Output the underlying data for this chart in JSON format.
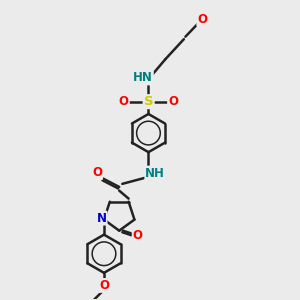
{
  "bg_color": "#ebebeb",
  "bond_color": "#222222",
  "bond_width": 1.8,
  "atom_colors": {
    "O": "#ff0000",
    "N": "#0000cc",
    "S": "#cccc00",
    "HN": "#008080",
    "C": "#222222"
  },
  "font_size": 8.5,
  "figsize": [
    3.0,
    3.0
  ],
  "dpi": 100
}
